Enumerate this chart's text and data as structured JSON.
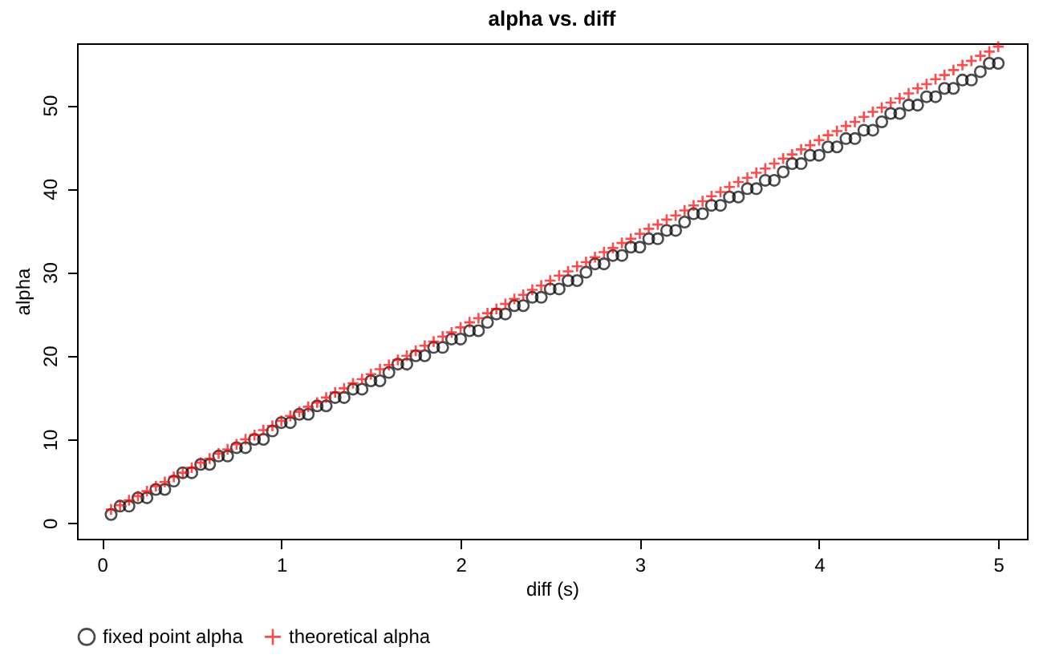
{
  "chart_data": {
    "type": "scatter",
    "title": "alpha vs. diff",
    "xlabel": "diff (s)",
    "ylabel": "alpha",
    "x": [
      0.05,
      0.1,
      0.15,
      0.2,
      0.25,
      0.3,
      0.35,
      0.4,
      0.45,
      0.5,
      0.55,
      0.6,
      0.65,
      0.7,
      0.75,
      0.8,
      0.85,
      0.9,
      0.95,
      1.0,
      1.05,
      1.1,
      1.15,
      1.2,
      1.25,
      1.3,
      1.35,
      1.4,
      1.45,
      1.5,
      1.55,
      1.6,
      1.65,
      1.7,
      1.75,
      1.8,
      1.85,
      1.9,
      1.95,
      2.0,
      2.05,
      2.1,
      2.15,
      2.2,
      2.25,
      2.3,
      2.35,
      2.4,
      2.45,
      2.5,
      2.55,
      2.6,
      2.65,
      2.7,
      2.75,
      2.8,
      2.85,
      2.9,
      2.95,
      3.0,
      3.05,
      3.1,
      3.15,
      3.2,
      3.25,
      3.3,
      3.35,
      3.4,
      3.45,
      3.5,
      3.55,
      3.6,
      3.65,
      3.7,
      3.75,
      3.8,
      3.85,
      3.9,
      3.95,
      4.0,
      4.05,
      4.1,
      4.15,
      4.2,
      4.25,
      4.3,
      4.35,
      4.4,
      4.45,
      4.5,
      4.55,
      4.6,
      4.65,
      4.7,
      4.75,
      4.8,
      4.85,
      4.9,
      4.95,
      5.0
    ],
    "series": [
      {
        "name": "fixed point alpha",
        "color": "#000000",
        "marker": "circle",
        "values": [
          1,
          2,
          2,
          3,
          3,
          4,
          4,
          5,
          6,
          6,
          7,
          7,
          8,
          8,
          9,
          9,
          10,
          10,
          11,
          12,
          12,
          13,
          13,
          14,
          14,
          15,
          15,
          16,
          16,
          17,
          17,
          18,
          19,
          19,
          20,
          20,
          21,
          21,
          22,
          22,
          23,
          23,
          24,
          25,
          25,
          26,
          26,
          27,
          27,
          28,
          28,
          29,
          29,
          30,
          31,
          31,
          32,
          32,
          33,
          33,
          34,
          34,
          35,
          35,
          36,
          37,
          37,
          38,
          38,
          39,
          39,
          40,
          40,
          41,
          41,
          42,
          43,
          43,
          44,
          44,
          45,
          45,
          46,
          46,
          47,
          47,
          48,
          49,
          49,
          50,
          50,
          51,
          51,
          52,
          52,
          53,
          53,
          54,
          55,
          55
        ]
      },
      {
        "name": "theoretical alpha",
        "color": "#ff0000",
        "marker": "cross",
        "values": [
          1.6,
          2.1,
          2.7,
          3.2,
          3.8,
          4.4,
          4.9,
          5.5,
          6.0,
          6.6,
          7.2,
          7.7,
          8.3,
          8.8,
          9.4,
          10.0,
          10.5,
          11.1,
          11.6,
          12.2,
          12.8,
          13.3,
          13.9,
          14.4,
          15.0,
          15.6,
          16.1,
          16.7,
          17.2,
          17.8,
          18.4,
          18.9,
          19.5,
          20.0,
          20.6,
          21.2,
          21.7,
          22.3,
          22.8,
          23.4,
          24.0,
          24.5,
          25.1,
          25.6,
          26.2,
          26.8,
          27.3,
          27.9,
          28.4,
          29.0,
          29.6,
          30.1,
          30.7,
          31.2,
          31.8,
          32.4,
          32.9,
          33.5,
          34.0,
          34.6,
          35.2,
          35.7,
          36.3,
          36.8,
          37.4,
          38.0,
          38.5,
          39.1,
          39.6,
          40.2,
          40.8,
          41.3,
          41.9,
          42.4,
          43.0,
          43.6,
          44.1,
          44.7,
          45.2,
          45.8,
          46.4,
          46.9,
          47.5,
          48.0,
          48.6,
          49.2,
          49.7,
          50.3,
          50.8,
          51.4,
          52.0,
          52.5,
          53.1,
          53.6,
          54.2,
          54.8,
          55.3,
          55.9,
          56.4,
          57.0
        ]
      }
    ],
    "xlim": [
      -0.14,
      5.16
    ],
    "xticks": [
      0,
      1,
      2,
      3,
      4,
      5
    ],
    "ylim": [
      -1.9,
      57.4
    ],
    "yticks": [
      0,
      10,
      20,
      30,
      40,
      50
    ],
    "legend": "bottom",
    "grid": false
  }
}
